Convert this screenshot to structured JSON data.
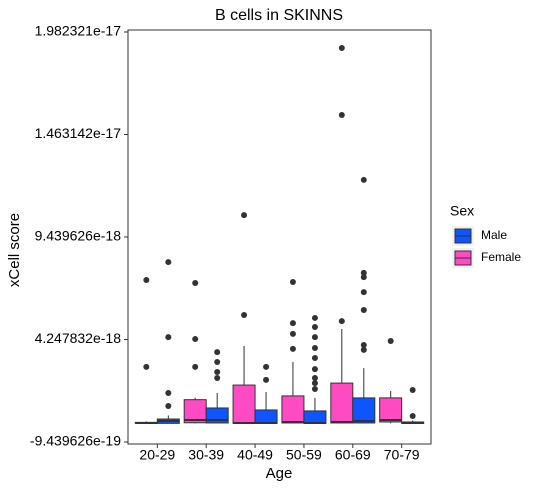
{
  "chart_data": {
    "type": "box",
    "title": "B cells in SKINNS",
    "x_label": "Age",
    "y_label": "xCell score",
    "legend_title": "Sex",
    "categories": [
      "20-29",
      "30-39",
      "40-49",
      "50-59",
      "60-69",
      "70-79"
    ],
    "ylim": [
      -9.439626e-19,
      1.982321e-17
    ],
    "yticks": [
      -9.439626e-19,
      4.247832e-18,
      9.439626e-18,
      1.463142e-17,
      1.982321e-17
    ],
    "series": [
      {
        "name": "Female",
        "color": "#ff4bc3",
        "low": [
          0,
          0,
          0,
          0,
          0,
          0
        ],
        "q1": [
          0,
          3e-20,
          0,
          2e-20,
          2e-20,
          7e-20
        ],
        "median": [
          2e-20,
          1.7e-19,
          2e-20,
          7e-20,
          7e-20,
          1.7e-19
        ],
        "q3": [
          5e-20,
          1.2e-18,
          1.94e-18,
          1.39e-18,
          2.04e-18,
          1.29e-18
        ],
        "high": [
          1e-19,
          1.3e-18,
          3.92e-18,
          3.11e-18,
          4.78e-18,
          1.64e-18
        ],
        "outliers": [
          [
            2.86e-18,
            7.26e-18
          ],
          [
            2.86e-18,
            4.27e-18,
            7.11e-18
          ],
          [
            5.49e-18,
            1.055e-17
          ],
          [
            3.77e-18,
            4.53e-18,
            5.08e-18,
            7.16e-18
          ],
          [
            5.18e-18,
            1.562e-17,
            1.901e-17
          ],
          [
            4.17e-18
          ]
        ]
      },
      {
        "name": "Male",
        "color": "#0f55ff",
        "low": [
          0,
          0,
          0,
          0,
          0,
          0
        ],
        "q1": [
          0,
          2e-20,
          0,
          0,
          2e-20,
          0
        ],
        "median": [
          1.2e-19,
          1.7e-19,
          2e-20,
          2e-20,
          1.2e-19,
          2e-20
        ],
        "q3": [
          2.2e-19,
          7.8e-19,
          6.8e-19,
          6.3e-19,
          1.29e-18,
          7e-20
        ],
        "high": [
          4e-19,
          1.54e-18,
          1.59e-18,
          1.29e-18,
          2.8e-18,
          1.5e-19
        ],
        "outliers": [
          [
            8.8e-19,
            1.54e-18,
            4.37e-18,
            8.17e-18
          ],
          [
            2.3e-18,
            2.6e-18,
            3.11e-18,
            3.61e-18
          ],
          [
            2.2e-18,
            2.86e-18
          ],
          [
            1.74e-18,
            2.04e-18,
            2.3e-18,
            2.75e-18,
            3.31e-18,
            3.82e-18,
            4.37e-18,
            4.88e-18,
            5.34e-18
          ],
          [
            3.72e-18,
            3.97e-18,
            5.74e-18,
            6.65e-18,
            7.41e-18,
            7.62e-18,
            1.233e-17
          ],
          [
            3.7e-19,
            1.69e-18
          ]
        ]
      }
    ]
  }
}
